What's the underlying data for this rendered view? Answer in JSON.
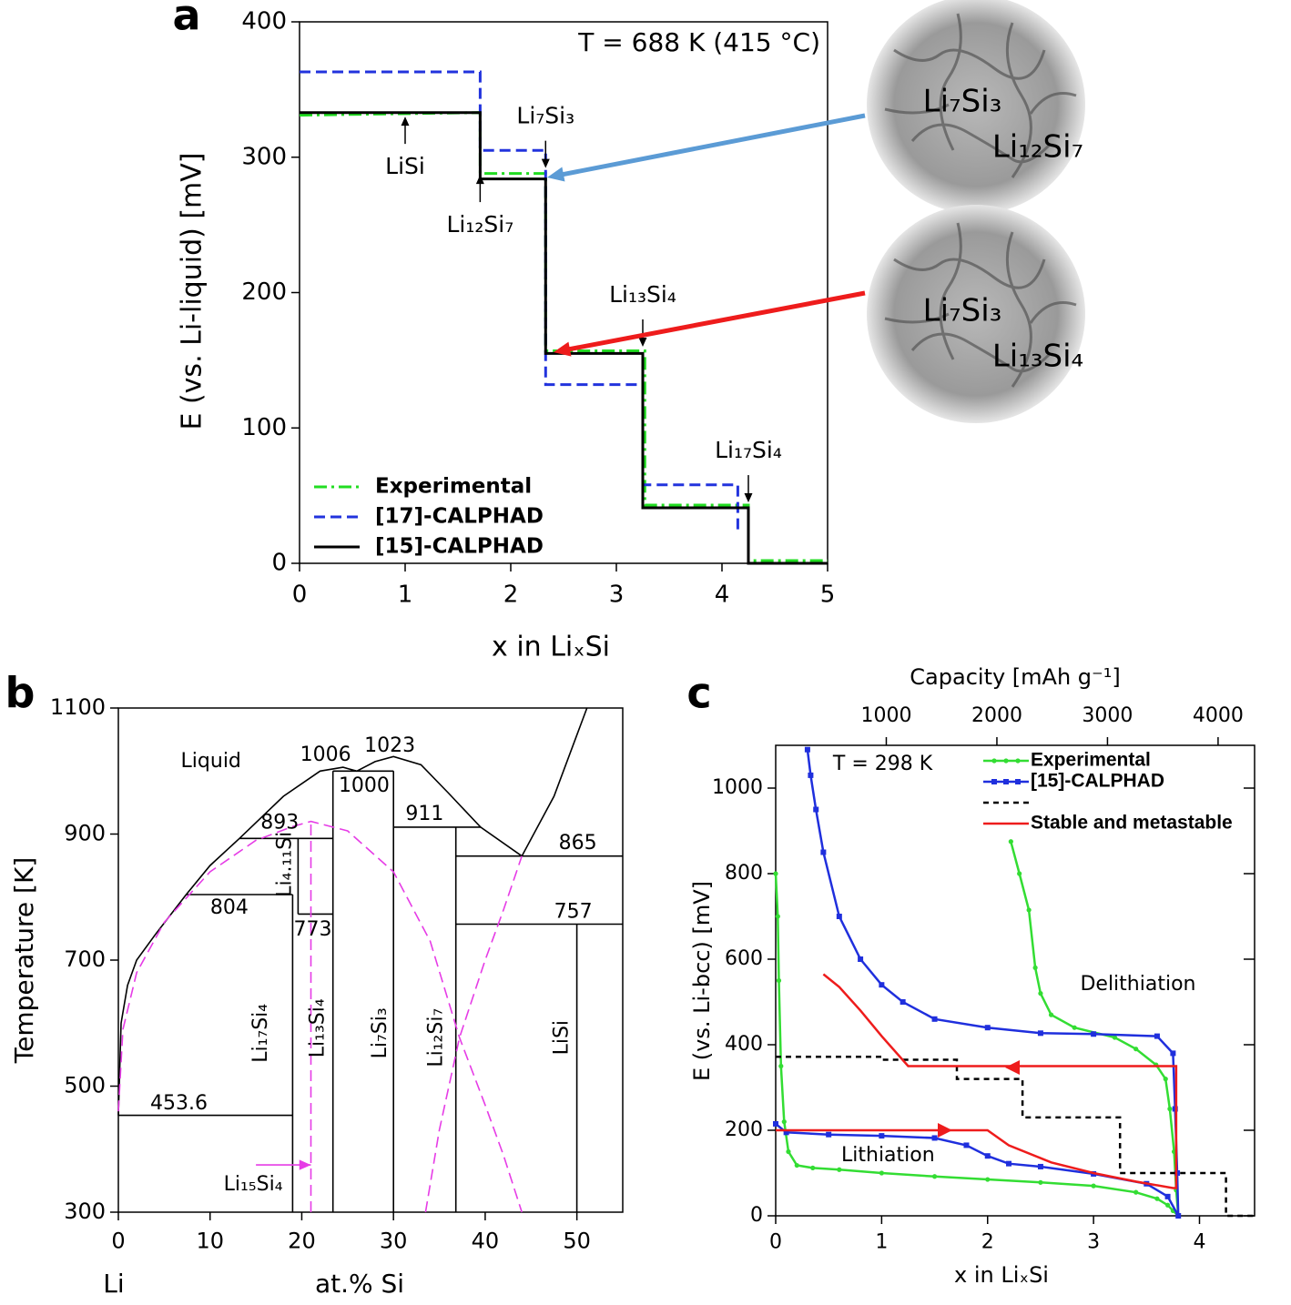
{
  "chart_data": [
    {
      "type": "line",
      "panel": "a",
      "note": "T = 688 K (415 °C)",
      "xlabel": "x in LiₓSi",
      "ylabel": "E (vs. Li-liquid) [mV]",
      "xlim": [
        0,
        5
      ],
      "ylim": [
        0,
        400
      ],
      "xticks": [
        0,
        1,
        2,
        3,
        4,
        5
      ],
      "yticks": [
        0,
        100,
        200,
        300,
        400
      ],
      "legend": "lower left",
      "series": [
        {
          "name": "Experimental",
          "color": "#22dd22",
          "style": "dashdot",
          "x": [
            0,
            1.71,
            1.71,
            2.33,
            2.33,
            3.27,
            3.27,
            4.25,
            4.25,
            5
          ],
          "values": [
            331,
            333,
            288,
            288,
            157,
            157,
            43,
            43,
            2,
            2
          ]
        },
        {
          "name": "[17]-CALPHAD",
          "color": "#2233dd",
          "style": "dashed",
          "x": [
            0,
            1.71,
            1.71,
            2.33,
            2.33,
            3.25,
            3.25,
            4.15,
            4.15
          ],
          "values": [
            363,
            363,
            305,
            305,
            132,
            132,
            58,
            58,
            25
          ]
        },
        {
          "name": "[15]-CALPHAD",
          "color": "#000000",
          "style": "solid",
          "x": [
            0,
            1.71,
            1.71,
            2.33,
            2.33,
            3.25,
            3.25,
            4.25,
            4.25,
            5
          ],
          "values": [
            333,
            333,
            284,
            284,
            155,
            155,
            41,
            41,
            0,
            0
          ]
        }
      ],
      "annotations": [
        {
          "text": "LiSi",
          "x": 1,
          "y": 330,
          "side": "below"
        },
        {
          "text": "Li₇Si₃",
          "x": 2.33,
          "y": 292,
          "side": "above"
        },
        {
          "text": "Li₁₂Si₇",
          "x": 1.71,
          "y": 287,
          "side": "below"
        },
        {
          "text": "Li₁₃Si₄",
          "x": 3.25,
          "y": 160,
          "side": "above"
        },
        {
          "text": "Li₁₇Si₄",
          "x": 4.25,
          "y": 45,
          "side": "above"
        }
      ],
      "insets": [
        {
          "labels": [
            "Li₇Si₃",
            "Li₁₂Si₇"
          ],
          "color": "#5b9bd5"
        },
        {
          "labels": [
            "Li₇Si₃",
            "Li₁₃Si₄"
          ],
          "color": "#ee1c1c"
        }
      ]
    },
    {
      "type": "line",
      "panel": "b",
      "xlabel": "at.% Si",
      "origin_label": "Li",
      "ylabel": "Temperature [K]",
      "xlim": [
        0,
        55
      ],
      "ylim": [
        300,
        1100
      ],
      "xticks": [
        0,
        10,
        20,
        30,
        40,
        50
      ],
      "yticks": [
        300,
        500,
        700,
        900,
        1100
      ],
      "series": [
        {
          "color": "#000000",
          "style": "solid",
          "x": [
            0,
            0.3,
            1,
            2,
            4,
            7.4,
            10,
            13.2,
            18,
            22,
            24.5,
            26,
            28,
            30,
            33,
            36,
            39.5,
            44,
            47.5,
            51.1
          ],
          "values": [
            453.6,
            600,
            660,
            700,
            740,
            804,
            850,
            893,
            960,
            1000,
            1006,
            1000,
            1015,
            1023,
            1010,
            965,
            911,
            865,
            960,
            1100
          ]
        },
        {
          "color": "#000000",
          "style": "solid",
          "x": [
            0,
            19
          ],
          "values": [
            453.6,
            453.6
          ]
        },
        {
          "color": "#000000",
          "style": "solid",
          "x": [
            7.4,
            19
          ],
          "values": [
            804,
            804
          ]
        },
        {
          "color": "#000000",
          "style": "solid",
          "x": [
            13.2,
            23.4
          ],
          "values": [
            893,
            893
          ]
        },
        {
          "color": "#000000",
          "style": "solid",
          "x": [
            19.6,
            23.4
          ],
          "values": [
            773,
            773
          ]
        },
        {
          "color": "#000000",
          "style": "solid",
          "x": [
            23.4,
            30
          ],
          "values": [
            1000,
            1000
          ]
        },
        {
          "color": "#000000",
          "style": "solid",
          "x": [
            30,
            39.5
          ],
          "values": [
            911,
            911
          ]
        },
        {
          "color": "#000000",
          "style": "solid",
          "x": [
            36.8,
            55
          ],
          "values": [
            865,
            865
          ]
        },
        {
          "color": "#000000",
          "style": "solid",
          "x": [
            36.8,
            55
          ],
          "values": [
            757,
            757
          ]
        },
        {
          "color": "#000000",
          "style": "solid",
          "x": [
            19,
            19
          ],
          "values": [
            300,
            804
          ]
        },
        {
          "color": "#000000",
          "style": "solid",
          "x": [
            19.6,
            19.6
          ],
          "values": [
            773,
            893
          ]
        },
        {
          "color": "#000000",
          "style": "solid",
          "x": [
            23.4,
            23.4
          ],
          "values": [
            300,
            1000
          ]
        },
        {
          "color": "#000000",
          "style": "solid",
          "x": [
            30,
            30
          ],
          "values": [
            300,
            1000
          ]
        },
        {
          "color": "#000000",
          "style": "solid",
          "x": [
            36.8,
            36.8
          ],
          "values": [
            300,
            911
          ]
        },
        {
          "color": "#000000",
          "style": "solid",
          "x": [
            50,
            50
          ],
          "values": [
            300,
            757
          ]
        },
        {
          "color": "#e63ce6",
          "style": "dashed",
          "x": [
            0,
            0.5,
            2,
            5,
            10,
            15,
            19,
            21,
            25,
            30,
            34,
            37.2,
            40,
            42,
            44
          ],
          "values": [
            460,
            590,
            680,
            760,
            840,
            890,
            912,
            920,
            905,
            840,
            730,
            577,
            470,
            390,
            300
          ]
        },
        {
          "color": "#e63ce6",
          "style": "dashed",
          "x": [
            33.5,
            35,
            37.2,
            40,
            42,
            44
          ],
          "values": [
            300,
            430,
            577,
            700,
            780,
            865
          ]
        },
        {
          "color": "#e63ce6",
          "style": "dashed",
          "x": [
            21,
            21
          ],
          "values": [
            300,
            920
          ]
        },
        {
          "color": "#e63ce6",
          "style": "solid",
          "arrow": true,
          "x": [
            15,
            21
          ],
          "values": [
            375,
            375
          ]
        }
      ],
      "labels": [
        {
          "text": "Liquid",
          "x": 10.1,
          "y": 1015,
          "color": "#000000"
        },
        {
          "text": "1006",
          "x": 22.6,
          "y": 1025,
          "color": "#2020dd"
        },
        {
          "text": "1023",
          "x": 29.6,
          "y": 1039,
          "color": "#2020dd"
        },
        {
          "text": "1000",
          "x": 26.8,
          "y": 976,
          "color": "#2020dd"
        },
        {
          "text": "893",
          "x": 17.6,
          "y": 917,
          "color": "#2020dd"
        },
        {
          "text": "911",
          "x": 33.4,
          "y": 931,
          "color": "#2020dd"
        },
        {
          "text": "865",
          "x": 50.1,
          "y": 885,
          "color": "#2020dd"
        },
        {
          "text": "804",
          "x": 12.1,
          "y": 782,
          "color": "#2020dd"
        },
        {
          "text": "773",
          "x": 21.2,
          "y": 748,
          "color": "#2020dd"
        },
        {
          "text": "757",
          "x": 49.6,
          "y": 776,
          "color": "#2020dd"
        },
        {
          "text": "453.6",
          "x": 6.6,
          "y": 472,
          "color": "#2020dd"
        },
        {
          "text": "Li₁₅Si₄",
          "x": 14.7,
          "y": 343,
          "color": "#e63ce6"
        },
        {
          "text": "Li₄.₁₁Si",
          "x": 18.2,
          "y": 852,
          "color": "#000000",
          "vertical": true
        },
        {
          "text": "Li₁₇Si₄",
          "x": 15.6,
          "y": 584,
          "color": "#000000",
          "vertical": true
        },
        {
          "text": "Li₁₃Si₄",
          "x": 21.8,
          "y": 592,
          "color": "#000000",
          "vertical": true
        },
        {
          "text": "Li₇Si₃",
          "x": 28.6,
          "y": 584,
          "color": "#000000",
          "vertical": true
        },
        {
          "text": "Li₁₂Si₇",
          "x": 34.7,
          "y": 577,
          "color": "#000000",
          "vertical": true
        },
        {
          "text": "LiSi",
          "x": 48.4,
          "y": 577,
          "color": "#000000",
          "vertical": true
        }
      ]
    },
    {
      "type": "line",
      "panel": "c",
      "xlabel": "x in LiₓSi",
      "ylabel": "E (vs. Li-bcc) [mV]",
      "x2label": "Capacity [mAh g⁻¹]",
      "xlim": [
        0,
        4.52
      ],
      "ylim": [
        0,
        1100
      ],
      "x2lim": [
        0,
        4330
      ],
      "xticks": [
        0,
        1,
        2,
        3,
        4
      ],
      "yticks": [
        0,
        200,
        400,
        600,
        800,
        1000
      ],
      "x2ticks": [
        1000,
        2000,
        3000,
        4000
      ],
      "legend": "upper right",
      "series": [
        {
          "name": "Experimental",
          "color": "#33dd33",
          "style": "solid",
          "marker": "dot",
          "x": [
            0,
            0.02,
            0.03,
            0.05,
            0.08,
            0.12,
            0.2,
            0.35,
            0.6,
            1,
            1.5,
            2,
            2.5,
            3,
            3.4,
            3.6,
            3.7,
            3.75,
            3.8,
            3.78,
            3.76,
            3.72,
            3.68,
            3.59,
            3.4,
            3.2,
            2.82,
            2.6,
            2.5,
            2.45,
            2.39,
            2.3,
            2.22
          ],
          "values": [
            800,
            700,
            550,
            350,
            220,
            150,
            118,
            112,
            108,
            100,
            92,
            85,
            78,
            70,
            55,
            40,
            25,
            12,
            0,
            60,
            150,
            250,
            320,
            353,
            390,
            417,
            440,
            470,
            520,
            580,
            715,
            800,
            875
          ]
        },
        {
          "name": "[15]-CALPHAD",
          "color": "#1f2fdd",
          "style": "solid",
          "marker": "square",
          "x": [
            0,
            0.1,
            0.5,
            1,
            1.5,
            1.8,
            2,
            2.2,
            2.5,
            3,
            3.5,
            3.7,
            3.8,
            3.79,
            3.77,
            3.75,
            3.6,
            3,
            2.5,
            2,
            1.5,
            1.2,
            1,
            0.8,
            0.6,
            0.45,
            0.38,
            0.33,
            0.3
          ],
          "values": [
            215,
            195,
            190,
            187,
            182,
            165,
            140,
            122,
            115,
            98,
            75,
            45,
            0,
            100,
            250,
            380,
            420,
            425,
            427,
            440,
            460,
            500,
            540,
            600,
            700,
            850,
            950,
            1030,
            1090
          ]
        },
        {
          "color": "#000000",
          "style": "dotted",
          "x": [
            0,
            1,
            1,
            1.71,
            1.71,
            2.33,
            2.33,
            3.25,
            3.25,
            4.25,
            4.25,
            4.52
          ],
          "values": [
            372,
            372,
            365,
            365,
            320,
            320,
            230,
            230,
            100,
            100,
            0,
            0
          ]
        },
        {
          "name": "Stable and metastable",
          "color": "#ee1c1c",
          "style": "solid",
          "x": [
            0,
            0.2,
            2,
            2.2,
            2.6,
            3,
            3.4,
            3.75,
            3.78,
            3.78,
            2.5,
            1.25,
            1.0,
            0.8,
            0.6,
            0.45
          ],
          "values": [
            200,
            200,
            200,
            165,
            125,
            100,
            80,
            65,
            65,
            350,
            350,
            350,
            420,
            480,
            535,
            565
          ]
        }
      ],
      "labels": [
        {
          "text": "T = 298 K",
          "x": 1.01,
          "y": 1055,
          "color": "#000000"
        },
        {
          "text": "Delithiation",
          "x": 3.42,
          "y": 540,
          "color": "#000000"
        },
        {
          "text": "Lithiation",
          "x": 1.06,
          "y": 140,
          "color": "#000000"
        }
      ]
    }
  ]
}
